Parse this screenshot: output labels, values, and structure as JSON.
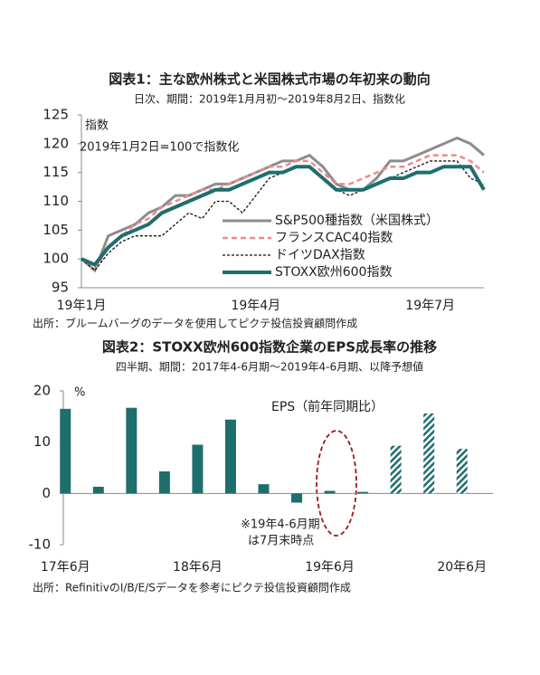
{
  "chart_data": [
    {
      "type": "line",
      "title": "図表1：主な欧州株式と米国株式市場の年初来の動向",
      "subtitle": "日次、期間：2019年1月月初～2019年8月2日、指数化",
      "y_label": "指数",
      "annotation": "2019年1月2日=100で指数化",
      "source": "出所：ブルームバーグのデータを使用してピクテ投信投資顧問作成",
      "categories": [
        "19年1月",
        null,
        null,
        null,
        null,
        null,
        null,
        null,
        null,
        null,
        null,
        null,
        null,
        "19年4月",
        null,
        null,
        null,
        null,
        null,
        null,
        null,
        null,
        null,
        null,
        null,
        null,
        "19年7月",
        null,
        null,
        null,
        null
      ],
      "ylim": [
        95,
        125
      ],
      "yticks": [
        95,
        100,
        105,
        110,
        115,
        120,
        125
      ],
      "legend": "lower right",
      "series": [
        {
          "name": "S&P500種指数（米国株式）",
          "color": "#8c8c8c",
          "dash": "solid",
          "values": [
            100,
            98,
            104,
            105,
            106,
            108,
            109,
            111,
            111,
            112,
            113,
            113,
            114,
            115,
            116,
            117,
            117,
            118,
            116,
            113,
            112,
            112,
            114,
            117,
            117,
            118,
            119,
            120,
            121,
            120,
            118
          ]
        },
        {
          "name": "フランスCAC40指数",
          "color": "#f08a8a",
          "dash": "dashed",
          "values": [
            100,
            98,
            102,
            104,
            106,
            107,
            109,
            110,
            111,
            112,
            112,
            113,
            114,
            115,
            116,
            116,
            117,
            117,
            115,
            113,
            113,
            114,
            115,
            116,
            116,
            117,
            118,
            118,
            118,
            117,
            115
          ]
        },
        {
          "name": "ドイツDAX指数",
          "color": "#111111",
          "dash": "dotted",
          "values": [
            100,
            98,
            101,
            103,
            104,
            104,
            104,
            106,
            108,
            107,
            110,
            110,
            108,
            111,
            114,
            115,
            116,
            116,
            114,
            112,
            111,
            112,
            113,
            114,
            115,
            116,
            117,
            117,
            117,
            114,
            113
          ]
        },
        {
          "name": "STOXX欧州600指数",
          "color": "#1f6e6e",
          "dash": "thick",
          "values": [
            100,
            99,
            102,
            104,
            105,
            106,
            108,
            109,
            110,
            111,
            112,
            112,
            113,
            114,
            115,
            115,
            116,
            116,
            114,
            112,
            112,
            112,
            113,
            114,
            114,
            115,
            115,
            116,
            116,
            116,
            112
          ]
        }
      ]
    },
    {
      "type": "bar",
      "title": "図表2：STOXX欧州600指数企業のEPS成長率の推移",
      "subtitle": "四半期、期間：2017年4-6月期～2019年4-6月期、以降予想値",
      "y_label": "%",
      "annotation": "EPS（前年同期比）",
      "note_lines": [
        "※19年4-6月期",
        "は7月末時点"
      ],
      "source": "出所：RefinitivのI/B/E/Sデータを参考にピクテ投信投資顧問作成",
      "categories": [
        "17年6月",
        null,
        null,
        null,
        "18年6月",
        null,
        null,
        null,
        "19年6月",
        null,
        null,
        null,
        "20年6月"
      ],
      "values": [
        16.5,
        1.3,
        16.7,
        4.3,
        9.5,
        14.4,
        1.8,
        -1.8,
        0.5,
        0.3,
        9.3,
        15.6,
        8.7
      ],
      "hatched": [
        false,
        false,
        false,
        false,
        false,
        false,
        false,
        false,
        false,
        false,
        true,
        true,
        true
      ],
      "color": "#1f6e6e",
      "ylim": [
        -10,
        20
      ],
      "yticks": [
        -10,
        0,
        10,
        20
      ]
    }
  ]
}
